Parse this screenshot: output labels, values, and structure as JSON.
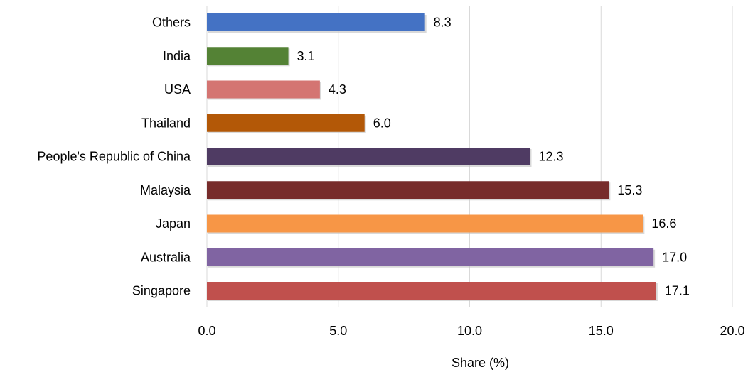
{
  "chart_data": {
    "type": "bar",
    "orientation": "horizontal",
    "title": "",
    "xlabel": "Share (%)",
    "ylabel": "",
    "xlim": [
      0,
      20
    ],
    "x_ticks": [
      "0.0",
      "5.0",
      "10.0",
      "15.0",
      "20.0"
    ],
    "grid": "vertical",
    "legend": "none",
    "categories": [
      "Others",
      "India",
      "USA",
      "Thailand",
      "People's Republic of China",
      "Malaysia",
      "Japan",
      "Australia",
      "Singapore"
    ],
    "values": [
      8.3,
      3.1,
      4.3,
      6.0,
      12.3,
      15.3,
      16.6,
      17.0,
      17.1
    ],
    "value_labels": [
      "8.3",
      "3.1",
      "4.3",
      "6.0",
      "12.3",
      "15.3",
      "16.6",
      "17.0",
      "17.1"
    ],
    "colors": [
      "#4472c4",
      "#548235",
      "#d47572",
      "#b35807",
      "#4f3b63",
      "#772c2b",
      "#f79646",
      "#8064a2",
      "#c0504d"
    ]
  }
}
